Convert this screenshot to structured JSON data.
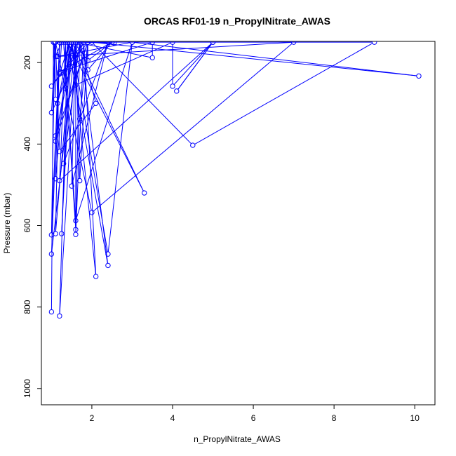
{
  "chart_data": {
    "type": "line",
    "title": "ORCAS RF01-19 n_PropylNitrate_AWAS",
    "xlabel": "n_PropylNitrate_AWAS",
    "ylabel": "Pressure (mbar)",
    "xlim": [
      0.75,
      10.5
    ],
    "ylim": [
      1040,
      148
    ],
    "y_reversed": true,
    "x_ticks": [
      2,
      4,
      6,
      8,
      10
    ],
    "y_ticks": [
      200,
      400,
      600,
      800,
      1000
    ],
    "grid": false,
    "series_color": "#0000ff",
    "series": [
      {
        "values": [
          [
            1.0,
            812
          ],
          [
            1.05,
            150
          ],
          [
            1.1,
            290
          ],
          [
            1.08,
            150
          ],
          [
            1.0,
            623
          ],
          [
            1.2,
            150
          ],
          [
            1.1,
            485
          ],
          [
            1.4,
            150
          ],
          [
            1.2,
            822
          ],
          [
            1.6,
            150
          ],
          [
            1.0,
            670
          ],
          [
            1.2,
            150
          ],
          [
            1.1,
            620
          ],
          [
            1.5,
            150
          ],
          [
            1.1,
            393
          ],
          [
            1.9,
            150
          ],
          [
            1.0,
            258
          ],
          [
            1.8,
            150
          ],
          [
            1.0,
            323
          ],
          [
            1.1,
            150
          ],
          [
            1.2,
            418
          ],
          [
            2.1,
            300
          ],
          [
            1.7,
            150
          ],
          [
            1.3,
            448
          ],
          [
            2.4,
            150
          ],
          [
            1.5,
            503
          ],
          [
            1.6,
            150
          ],
          [
            1.1,
            380
          ],
          [
            1.9,
            150
          ],
          [
            1.7,
            490
          ],
          [
            1.6,
            150
          ],
          [
            1.6,
            610
          ],
          [
            1.3,
            150
          ],
          [
            1.6,
            588
          ],
          [
            3.0,
            150
          ],
          [
            2.4,
            670
          ],
          [
            1.5,
            150
          ],
          [
            2.1,
            725
          ],
          [
            1.8,
            150
          ],
          [
            1.6,
            622
          ],
          [
            1.7,
            150
          ],
          [
            2.4,
            698
          ],
          [
            1.4,
            150
          ],
          [
            3.3,
            520
          ],
          [
            1.5,
            150
          ],
          [
            1.7,
            338
          ],
          [
            1.9,
            150
          ],
          [
            1.9,
            218
          ],
          [
            2.5,
            150
          ],
          [
            1.2,
            223
          ],
          [
            3.5,
            150
          ],
          [
            3.5,
            188
          ],
          [
            1.6,
            150
          ],
          [
            1.6,
            255
          ],
          [
            4.0,
            150
          ],
          [
            4.0,
            258
          ],
          [
            5.0,
            150
          ],
          [
            4.1,
            270
          ],
          [
            5.0,
            150
          ],
          [
            1.2,
            490
          ],
          [
            1.35,
            150
          ],
          [
            1.35,
            263
          ],
          [
            1.45,
            150
          ],
          [
            1.25,
            620
          ],
          [
            1.5,
            150
          ],
          [
            1.1,
            150
          ],
          [
            2.0,
            568
          ],
          [
            7.0,
            150
          ],
          [
            1.15,
            185
          ],
          [
            3.0,
            150
          ],
          [
            10.1,
            233
          ],
          [
            2.0,
            150
          ],
          [
            4.5,
            403
          ],
          [
            9.0,
            150
          ],
          [
            1.05,
            150
          ],
          [
            1.1,
            185
          ],
          [
            1.25,
            150
          ],
          [
            1.2,
            228
          ],
          [
            1.45,
            150
          ],
          [
            1.15,
            300
          ],
          [
            1.55,
            150
          ],
          [
            1.9,
            195
          ],
          [
            2.5,
            150
          ],
          [
            2.55,
            152
          ],
          [
            1.65,
            150
          ],
          [
            1.6,
            180
          ]
        ]
      }
    ]
  }
}
